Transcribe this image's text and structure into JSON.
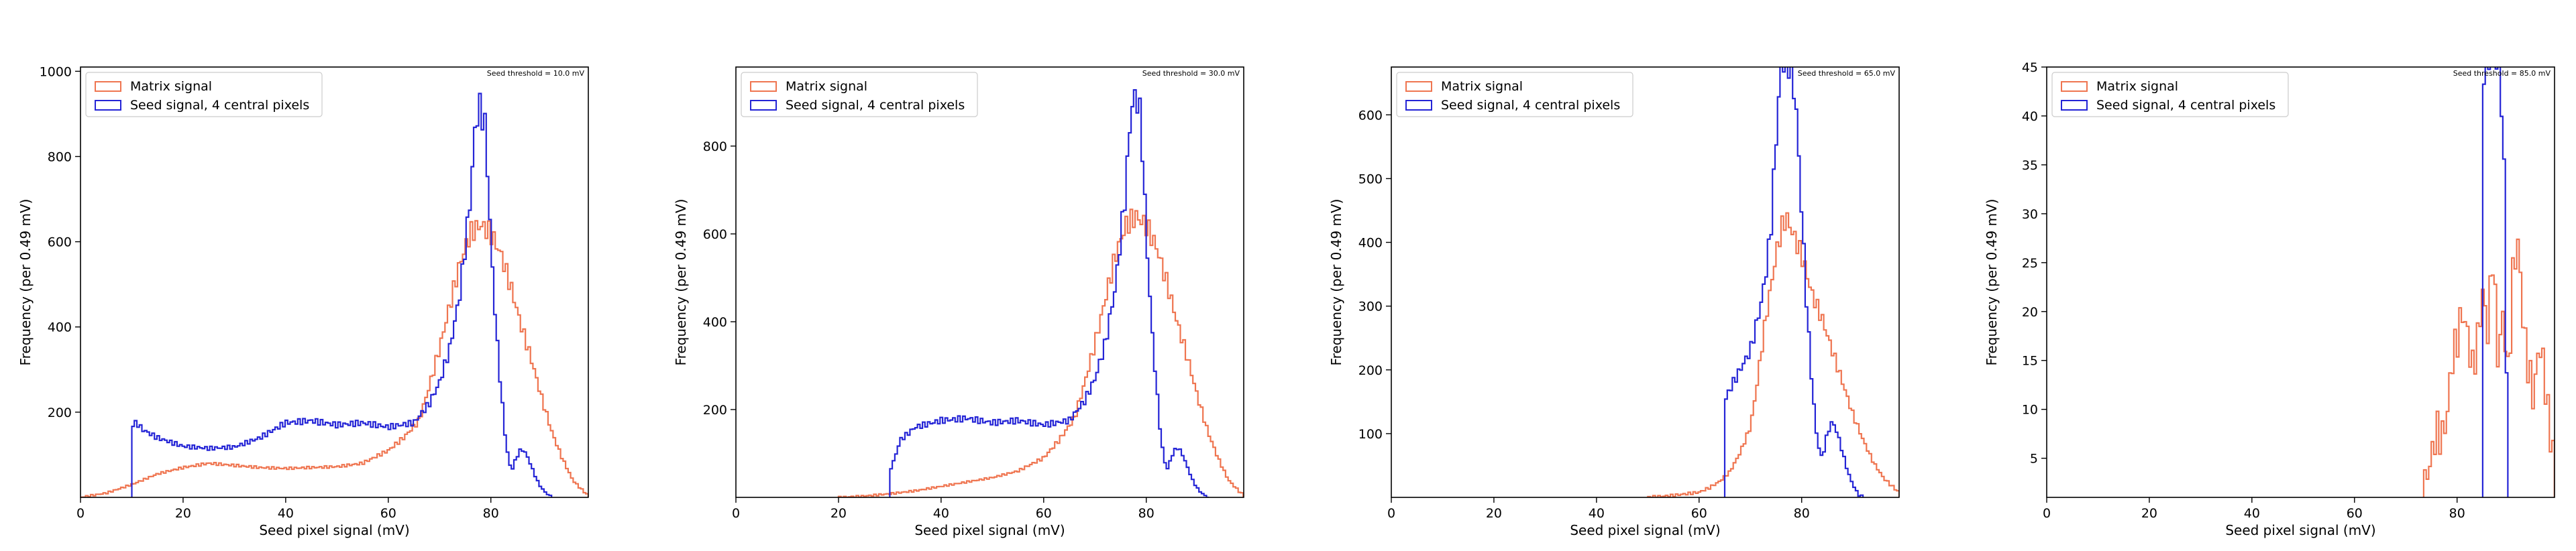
{
  "figure": {
    "background": "#ffffff",
    "matrix_color": "#ef7550",
    "seed_color": "#2424d6"
  },
  "chart_data": [
    {
      "type": "histogram",
      "annotation": "Seed threshold = 10.0 mV",
      "xlabel": "Seed pixel signal (mV)",
      "ylabel": "Frequency (per 0.49 mV)",
      "xlim": [
        0,
        99
      ],
      "ylim": [
        0,
        1010
      ],
      "xticks": [
        0,
        20,
        40,
        60,
        80
      ],
      "yticks": [
        200,
        400,
        600,
        800,
        1000
      ],
      "grid": false,
      "legend_position": "top-left",
      "series": [
        {
          "name": "Matrix signal",
          "color": "#ef7550",
          "points": [
            [
              0,
              0
            ],
            [
              5,
              10
            ],
            [
              10,
              30
            ],
            [
              15,
              55
            ],
            [
              20,
              70
            ],
            [
              25,
              80
            ],
            [
              30,
              75
            ],
            [
              35,
              70
            ],
            [
              40,
              68
            ],
            [
              45,
              70
            ],
            [
              50,
              72
            ],
            [
              55,
              80
            ],
            [
              60,
              110
            ],
            [
              63,
              140
            ],
            [
              66,
              180
            ],
            [
              68,
              260
            ],
            [
              70,
              350
            ],
            [
              72,
              450
            ],
            [
              74,
              550
            ],
            [
              76,
              620
            ],
            [
              78,
              640
            ],
            [
              80,
              620
            ],
            [
              82,
              570
            ],
            [
              84,
              490
            ],
            [
              86,
              400
            ],
            [
              88,
              320
            ],
            [
              90,
              230
            ],
            [
              92,
              150
            ],
            [
              94,
              90
            ],
            [
              96,
              40
            ],
            [
              98,
              15
            ],
            [
              99,
              5
            ]
          ]
        },
        {
          "name": "Seed signal, 4 central pixels",
          "color": "#2424d6",
          "points": [
            [
              10,
              0
            ],
            [
              10,
              170
            ],
            [
              11,
              175
            ],
            [
              12,
              160
            ],
            [
              15,
              140
            ],
            [
              20,
              120
            ],
            [
              25,
              115
            ],
            [
              30,
              118
            ],
            [
              35,
              140
            ],
            [
              40,
              175
            ],
            [
              45,
              180
            ],
            [
              50,
              170
            ],
            [
              55,
              175
            ],
            [
              60,
              165
            ],
            [
              65,
              175
            ],
            [
              68,
              220
            ],
            [
              70,
              270
            ],
            [
              72,
              350
            ],
            [
              74,
              480
            ],
            [
              76,
              700
            ],
            [
              77,
              880
            ],
            [
              78,
              920
            ],
            [
              79,
              860
            ],
            [
              80,
              600
            ],
            [
              81,
              400
            ],
            [
              82,
              250
            ],
            [
              83,
              120
            ],
            [
              84,
              60
            ],
            [
              85,
              95
            ],
            [
              86,
              115
            ],
            [
              87,
              100
            ],
            [
              88,
              70
            ],
            [
              89,
              40
            ],
            [
              90,
              20
            ],
            [
              91,
              8
            ],
            [
              92,
              0
            ]
          ]
        }
      ]
    },
    {
      "type": "histogram",
      "annotation": "Seed threshold = 30.0 mV",
      "xlabel": "Seed pixel signal (mV)",
      "ylabel": "Frequency (per 0.49 mV)",
      "xlim": [
        0,
        99
      ],
      "ylim": [
        0,
        980
      ],
      "xticks": [
        0,
        20,
        40,
        60,
        80
      ],
      "yticks": [
        200,
        400,
        600,
        800
      ],
      "grid": false,
      "legend_position": "top-left",
      "series": [
        {
          "name": "Matrix signal",
          "color": "#ef7550",
          "points": [
            [
              20,
              0
            ],
            [
              25,
              3
            ],
            [
              30,
              8
            ],
            [
              35,
              15
            ],
            [
              40,
              25
            ],
            [
              45,
              35
            ],
            [
              50,
              45
            ],
            [
              55,
              60
            ],
            [
              60,
              90
            ],
            [
              63,
              130
            ],
            [
              66,
              180
            ],
            [
              68,
              260
            ],
            [
              70,
              350
            ],
            [
              72,
              450
            ],
            [
              74,
              550
            ],
            [
              76,
              620
            ],
            [
              78,
              640
            ],
            [
              80,
              620
            ],
            [
              82,
              570
            ],
            [
              84,
              490
            ],
            [
              86,
              400
            ],
            [
              88,
              320
            ],
            [
              90,
              230
            ],
            [
              92,
              150
            ],
            [
              94,
              90
            ],
            [
              96,
              40
            ],
            [
              98,
              15
            ],
            [
              99,
              5
            ]
          ]
        },
        {
          "name": "Seed signal, 4 central pixels",
          "color": "#2424d6",
          "points": [
            [
              30,
              0
            ],
            [
              30,
              60
            ],
            [
              31,
              90
            ],
            [
              32,
              130
            ],
            [
              35,
              160
            ],
            [
              40,
              175
            ],
            [
              45,
              180
            ],
            [
              50,
              170
            ],
            [
              55,
              175
            ],
            [
              60,
              165
            ],
            [
              65,
              175
            ],
            [
              68,
              220
            ],
            [
              70,
              270
            ],
            [
              72,
              350
            ],
            [
              74,
              480
            ],
            [
              76,
              700
            ],
            [
              77,
              880
            ],
            [
              78,
              920
            ],
            [
              79,
              860
            ],
            [
              80,
              600
            ],
            [
              81,
              400
            ],
            [
              82,
              250
            ],
            [
              83,
              120
            ],
            [
              84,
              60
            ],
            [
              85,
              95
            ],
            [
              86,
              115
            ],
            [
              87,
              100
            ],
            [
              88,
              70
            ],
            [
              89,
              40
            ],
            [
              90,
              20
            ],
            [
              91,
              8
            ],
            [
              92,
              0
            ]
          ]
        }
      ]
    },
    {
      "type": "histogram",
      "annotation": "Seed threshold = 65.0 mV",
      "xlabel": "Seed pixel signal (mV)",
      "ylabel": "Frequency (per 0.49 mV)",
      "xlim": [
        0,
        99
      ],
      "ylim": [
        0,
        675
      ],
      "xticks": [
        0,
        20,
        40,
        60,
        80
      ],
      "yticks": [
        100,
        200,
        300,
        400,
        500,
        600
      ],
      "grid": false,
      "legend_position": "top-left",
      "series": [
        {
          "name": "Matrix signal",
          "color": "#ef7550",
          "points": [
            [
              50,
              0
            ],
            [
              55,
              3
            ],
            [
              60,
              8
            ],
            [
              62,
              15
            ],
            [
              64,
              25
            ],
            [
              66,
              40
            ],
            [
              68,
              70
            ],
            [
              70,
              110
            ],
            [
              71,
              160
            ],
            [
              72,
              220
            ],
            [
              73,
              280
            ],
            [
              74,
              330
            ],
            [
              75,
              380
            ],
            [
              76,
              420
            ],
            [
              77,
              440
            ],
            [
              78,
              420
            ],
            [
              79,
              400
            ],
            [
              80,
              380
            ],
            [
              81,
              350
            ],
            [
              82,
              320
            ],
            [
              84,
              280
            ],
            [
              86,
              230
            ],
            [
              88,
              180
            ],
            [
              90,
              130
            ],
            [
              92,
              90
            ],
            [
              94,
              55
            ],
            [
              96,
              30
            ],
            [
              98,
              15
            ],
            [
              99,
              8
            ]
          ]
        },
        {
          "name": "Seed signal, 4 central pixels",
          "color": "#2424d6",
          "points": [
            [
              65,
              0
            ],
            [
              65,
              150
            ],
            [
              66,
              170
            ],
            [
              67,
              185
            ],
            [
              68,
              200
            ],
            [
              70,
              230
            ],
            [
              72,
              300
            ],
            [
              73,
              350
            ],
            [
              74,
              420
            ],
            [
              75,
              560
            ],
            [
              76,
              680
            ],
            [
              77,
              690
            ],
            [
              78,
              680
            ],
            [
              79,
              600
            ],
            [
              80,
              450
            ],
            [
              81,
              300
            ],
            [
              82,
              180
            ],
            [
              83,
              90
            ],
            [
              84,
              60
            ],
            [
              85,
              100
            ],
            [
              86,
              120
            ],
            [
              87,
              100
            ],
            [
              88,
              70
            ],
            [
              89,
              40
            ],
            [
              90,
              20
            ],
            [
              91,
              5
            ],
            [
              92,
              0
            ]
          ]
        }
      ]
    },
    {
      "type": "histogram",
      "annotation": "Seed threshold = 85.0 mV",
      "xlabel": "Seed pixel signal (mV)",
      "ylabel": "Frequency (per 0.49 mV)",
      "xlim": [
        0,
        99
      ],
      "ylim": [
        1,
        45
      ],
      "xticks": [
        0,
        20,
        40,
        60,
        80
      ],
      "yticks": [
        5,
        10,
        15,
        20,
        25,
        30,
        35,
        40,
        45
      ],
      "grid": false,
      "legend_position": "top-left",
      "series": [
        {
          "name": "Matrix signal",
          "color": "#ef7550",
          "points": [
            [
              73,
              1
            ],
            [
              74,
              3
            ],
            [
              75,
              5
            ],
            [
              76,
              8
            ],
            [
              77,
              7
            ],
            [
              78,
              9
            ],
            [
              79,
              15
            ],
            [
              80,
              17
            ],
            [
              81,
              20
            ],
            [
              82,
              18
            ],
            [
              83,
              14
            ],
            [
              84,
              17
            ],
            [
              85,
              22
            ],
            [
              86,
              18
            ],
            [
              87,
              26
            ],
            [
              88,
              15
            ],
            [
              89,
              20
            ],
            [
              90,
              13
            ],
            [
              91,
              25
            ],
            [
              92,
              27
            ],
            [
              93,
              18
            ],
            [
              94,
              14
            ],
            [
              95,
              11
            ],
            [
              96,
              17
            ],
            [
              97,
              14
            ],
            [
              98,
              8
            ],
            [
              99,
              5
            ]
          ]
        },
        {
          "name": "Seed signal, 4 central pixels",
          "color": "#2424d6",
          "points": [
            [
              85,
              1
            ],
            [
              85,
              45
            ],
            [
              86,
              46
            ],
            [
              87,
              46
            ],
            [
              88,
              46
            ],
            [
              89,
              40
            ],
            [
              90,
              2
            ],
            [
              90,
              1
            ]
          ]
        }
      ]
    }
  ]
}
